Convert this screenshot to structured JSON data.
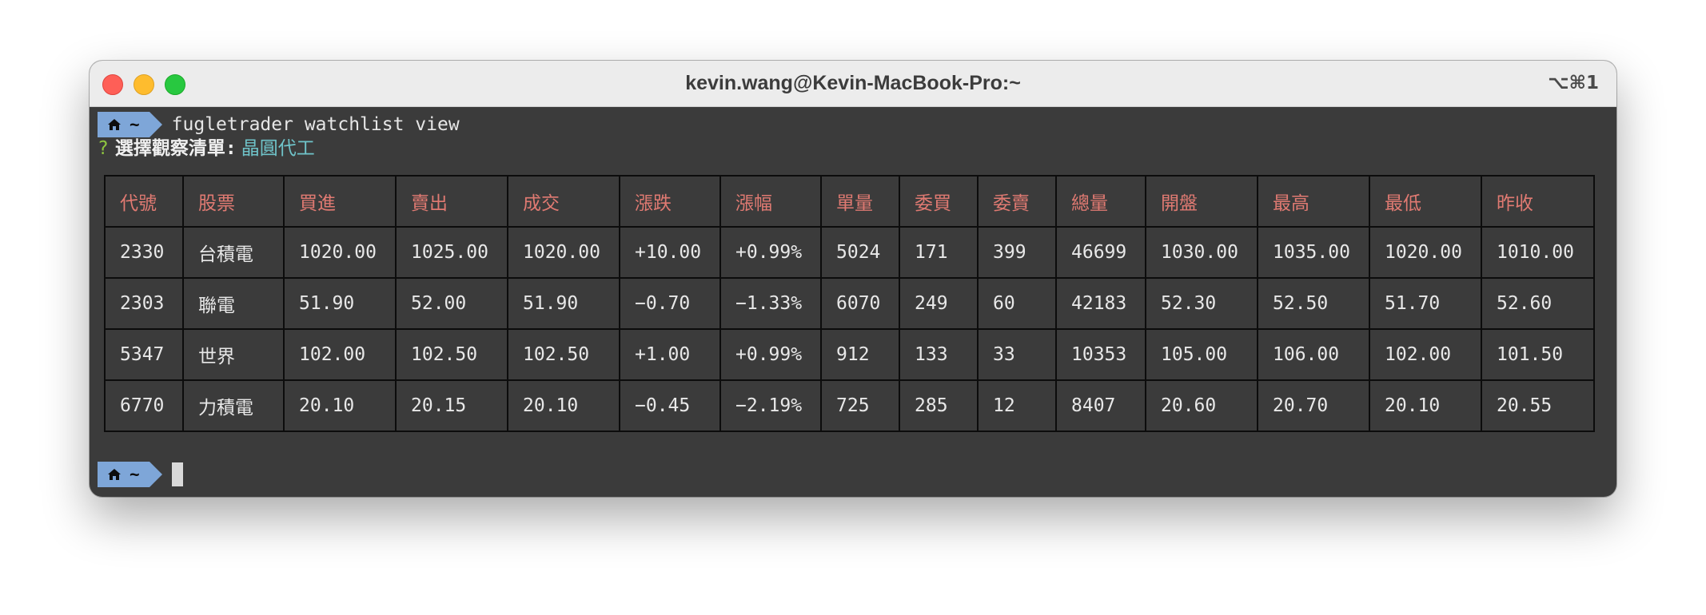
{
  "window": {
    "title": "kevin.wang@Kevin-MacBook-Pro:~",
    "shortcut": "⌥⌘1"
  },
  "terminal": {
    "prompt_dir": "~",
    "command": "fugletrader watchlist view",
    "question_mark": "?",
    "question_label": "選擇觀察清單:",
    "selected_watchlist": "晶圓代工"
  },
  "table": {
    "headers": [
      "代號",
      "股票",
      "買進",
      "賣出",
      "成交",
      "漲跌",
      "漲幅",
      "單量",
      "委買",
      "委賣",
      "總量",
      "開盤",
      "最高",
      "最低",
      "昨收"
    ],
    "rows": [
      [
        "2330",
        "台積電",
        "1020.00",
        "1025.00",
        "1020.00",
        "+10.00",
        "+0.99%",
        "5024",
        "171",
        "399",
        "46699",
        "1030.00",
        "1035.00",
        "1020.00",
        "1010.00"
      ],
      [
        "2303",
        "聯電",
        "51.90",
        "52.00",
        "51.90",
        "−0.70",
        "−1.33%",
        "6070",
        "249",
        "60",
        "42183",
        "52.30",
        "52.50",
        "51.70",
        "52.60"
      ],
      [
        "5347",
        "世界",
        "102.00",
        "102.50",
        "102.50",
        "+1.00",
        "+0.99%",
        "912",
        "133",
        "33",
        "10353",
        "105.00",
        "106.00",
        "102.00",
        "101.50"
      ],
      [
        "6770",
        "力積電",
        "20.10",
        "20.15",
        "20.10",
        "−0.45",
        "−2.19%",
        "725",
        "285",
        "12",
        "8407",
        "20.60",
        "20.70",
        "20.10",
        "20.55"
      ]
    ]
  },
  "colors": {
    "terminal_bg": "#3b3b3b",
    "header_text": "#e07a72",
    "prompt_badge": "#7ea6d8",
    "question_mark": "#8ec63f",
    "selected_value": "#6fc3c9"
  },
  "icons": {
    "prompt": "home-icon"
  }
}
